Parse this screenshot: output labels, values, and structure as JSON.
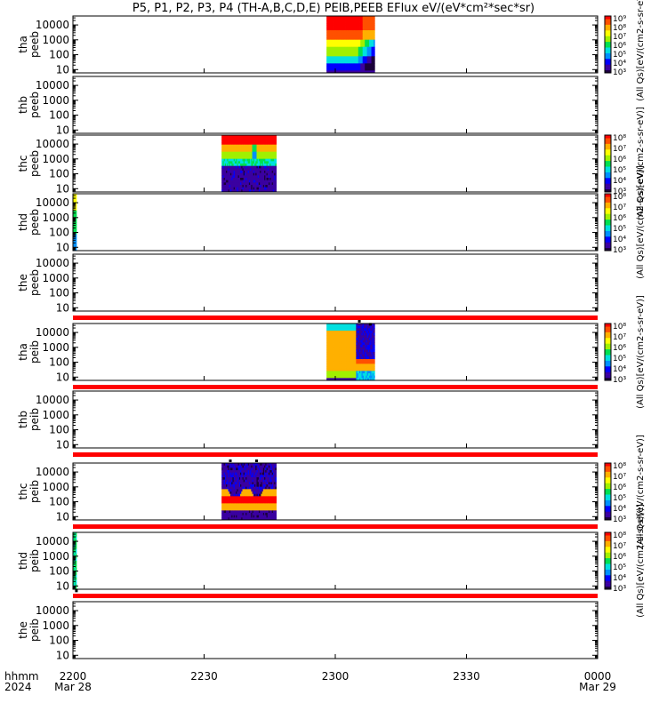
{
  "chart_data": {
    "type": "heatmap",
    "title": "P5, P1, P2, P3, P4 (TH-A,B,C,D,E) PEIB,PEEB EFlux eV/(eV*cm²*sec*sr)",
    "x_axis": {
      "label_top": "hhmm",
      "label_bottom": "2024",
      "range_minutes": [
        0,
        120
      ],
      "ticks": [
        {
          "minute": 0,
          "label": "2200",
          "sublabel": "Mar 28"
        },
        {
          "minute": 30,
          "label": "2230",
          "sublabel": ""
        },
        {
          "minute": 60,
          "label": "2300",
          "sublabel": ""
        },
        {
          "minute": 90,
          "label": "2330",
          "sublabel": ""
        },
        {
          "minute": 120,
          "label": "0000",
          "sublabel": "Mar 29"
        }
      ]
    },
    "y_scale": "log",
    "y_range": [
      6,
      40000
    ],
    "y_ticks": [
      10,
      100,
      1000,
      10000
    ],
    "y_tick_labels": [
      "10",
      "100",
      "1000",
      "10000"
    ],
    "panels": [
      {
        "probe": "tha",
        "instrument": "peeb",
        "label": [
          "tha",
          "peeb"
        ],
        "colorbar": {
          "min_exp": 3,
          "max_exp": 9,
          "labels": [
            "10³",
            "10⁴",
            "10⁵",
            "10⁶",
            "10⁷",
            "10⁸",
            "10⁹"
          ],
          "label": "(All Qs)[eV/(cm2-s-sr-eV)]"
        },
        "data": [
          {
            "t0": 58,
            "t1": 69,
            "profile": "electron_a"
          }
        ],
        "marks": []
      },
      {
        "probe": "thb",
        "instrument": "peeb",
        "label": [
          "thb",
          "peeb"
        ],
        "colorbar": null,
        "data": [],
        "marks": []
      },
      {
        "probe": "thc",
        "instrument": "peeb",
        "label": [
          "thc",
          "peeb"
        ],
        "colorbar": {
          "min_exp": 3,
          "max_exp": 8,
          "labels": [
            "10³",
            "10⁴",
            "10⁵",
            "10⁶",
            "10⁷",
            "10⁸"
          ],
          "label": "(All Qs)[eV/(cm2-s-sr-eV)]"
        },
        "data": [
          {
            "t0": 34,
            "t1": 46.5,
            "profile": "electron_c"
          }
        ],
        "marks": []
      },
      {
        "probe": "thd",
        "instrument": "peeb",
        "label": [
          "thd",
          "peeb"
        ],
        "colorbar": {
          "min_exp": 3,
          "max_exp": 8,
          "labels": [
            "10³",
            "10⁴",
            "10⁵",
            "10⁶",
            "10⁷",
            "10⁸"
          ],
          "label": "(All Qs)[eV/(cm2-s-sr-eV)]"
        },
        "data": [
          {
            "t0": 0,
            "t1": 0.8,
            "profile": "edge_d"
          }
        ],
        "marks": []
      },
      {
        "probe": "the",
        "instrument": "peeb",
        "label": [
          "the",
          "peeb"
        ],
        "colorbar": null,
        "data": [],
        "marks": []
      },
      {
        "probe": "tha",
        "instrument": "peib",
        "label": [
          "tha",
          "peib"
        ],
        "colorbar": {
          "min_exp": 3,
          "max_exp": 8,
          "labels": [
            "10³",
            "10⁴",
            "10⁵",
            "10⁶",
            "10⁷",
            "10⁸"
          ],
          "label": "(All Qs)[eV/(cm2-s-sr-eV)]"
        },
        "data": [
          {
            "t0": 58,
            "t1": 69,
            "profile": "ion_a"
          }
        ],
        "marks": [
          {
            "t": 65.5,
            "y": 42000
          },
          {
            "t": 68,
            "y": 38000
          }
        ]
      },
      {
        "probe": "thb",
        "instrument": "peib",
        "label": [
          "thb",
          "peib"
        ],
        "colorbar": null,
        "data": [],
        "marks": []
      },
      {
        "probe": "thc",
        "instrument": "peib",
        "label": [
          "thc",
          "peib"
        ],
        "colorbar": {
          "min_exp": 3,
          "max_exp": 8,
          "labels": [
            "10³",
            "10⁴",
            "10⁵",
            "10⁶",
            "10⁷",
            "10⁸"
          ],
          "label": "(All Qs)[eV/(cm2-s-sr-eV)]"
        },
        "data": [
          {
            "t0": 34,
            "t1": 46.5,
            "profile": "ion_c"
          }
        ],
        "marks": [
          {
            "t": 36,
            "y": 42000
          },
          {
            "t": 42,
            "y": 42000
          }
        ]
      },
      {
        "probe": "thd",
        "instrument": "peib",
        "label": [
          "thd",
          "peib"
        ],
        "colorbar": {
          "min_exp": 3,
          "max_exp": 8,
          "labels": [
            "10³",
            "10⁴",
            "10⁵",
            "10⁶",
            "10⁷",
            "10⁸"
          ],
          "label": "(All Qs)[eV/(cm2-s-sr-eV)]"
        },
        "data": [
          {
            "t0": 0,
            "t1": 0.8,
            "profile": "edge_d_ion"
          }
        ],
        "marks": [
          {
            "t": 0.8,
            "y": 5
          }
        ]
      },
      {
        "probe": "the",
        "instrument": "peib",
        "label": [
          "the",
          "peib"
        ],
        "colorbar": null,
        "data": [],
        "marks": []
      }
    ],
    "red_bars_after_panels": [
      4,
      5,
      6,
      7,
      8
    ],
    "colormap": [
      "#1a003a",
      "#3a00a0",
      "#0000ff",
      "#0090ff",
      "#00e0e0",
      "#00e050",
      "#a0f000",
      "#ffff00",
      "#ffb000",
      "#ff5000",
      "#ff0000"
    ]
  }
}
